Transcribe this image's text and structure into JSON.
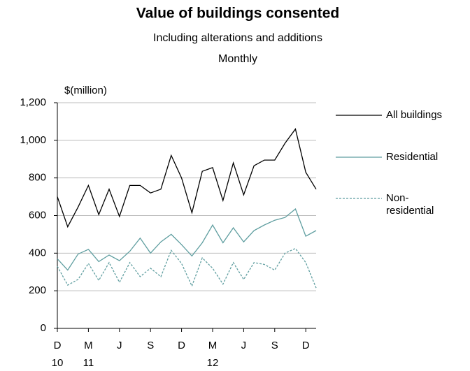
{
  "chart_data": {
    "type": "line",
    "title": "Value of buildings consented",
    "subtitle": [
      "Including alterations and additions",
      "Monthly"
    ],
    "y_label": "$(million)",
    "categories": [
      "D",
      null,
      null,
      "M",
      null,
      null,
      "J",
      null,
      null,
      "S",
      null,
      null,
      "D",
      null,
      null,
      "M",
      null,
      null,
      "J",
      null,
      null,
      "S",
      null,
      null,
      "D",
      null
    ],
    "category_years": [
      "10",
      null,
      null,
      "11",
      null,
      null,
      null,
      null,
      null,
      null,
      null,
      null,
      null,
      null,
      null,
      "12",
      null,
      null,
      null,
      null,
      null,
      null,
      null,
      null,
      null,
      null
    ],
    "series": [
      {
        "name": "All buildings",
        "color": "#000000",
        "line_style": "solid",
        "values": [
          700,
          540,
          645,
          760,
          605,
          740,
          595,
          760,
          760,
          720,
          740,
          920,
          800,
          615,
          835,
          855,
          680,
          880,
          710,
          865,
          895,
          895,
          985,
          1060,
          830,
          740
        ]
      },
      {
        "name": "Residential",
        "color": "#5f9ea0",
        "line_style": "solid",
        "values": [
          370,
          310,
          395,
          420,
          355,
          390,
          360,
          410,
          480,
          400,
          460,
          500,
          445,
          385,
          455,
          550,
          455,
          535,
          460,
          520,
          550,
          575,
          590,
          635,
          490,
          520
        ]
      },
      {
        "name": "Non-residential",
        "color": "#5f9ea0",
        "line_style": "dashed",
        "values": [
          330,
          230,
          260,
          345,
          255,
          350,
          245,
          350,
          275,
          320,
          275,
          415,
          345,
          225,
          375,
          320,
          235,
          350,
          260,
          350,
          340,
          310,
          400,
          425,
          350,
          215
        ]
      }
    ],
    "ylim": [
      0,
      1200
    ],
    "yticks": [
      0,
      200,
      400,
      600,
      800,
      {
        "value": 1000,
        "label": "1,000"
      },
      {
        "value": 1200,
        "label": "1,200"
      }
    ],
    "grid": true,
    "legend": "right"
  }
}
